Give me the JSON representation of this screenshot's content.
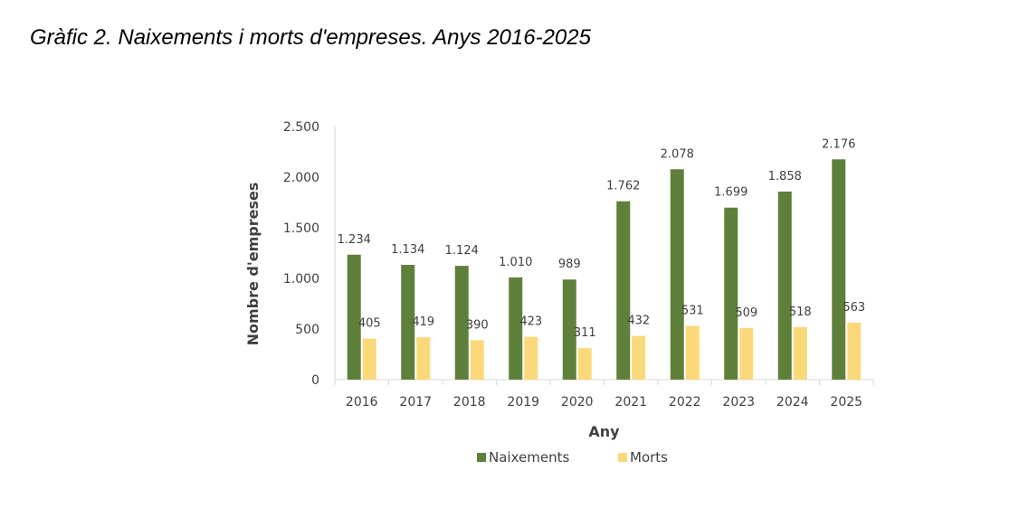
{
  "title": "Gràfic 2. Naixements i morts d'empreses. Anys 2016-2025",
  "chart_data": {
    "type": "bar",
    "categories": [
      "2016",
      "2017",
      "2018",
      "2019",
      "2020",
      "2021",
      "2022",
      "2023",
      "2024",
      "2025"
    ],
    "series": [
      {
        "name": "Naixements",
        "color": "#5f803a",
        "values": [
          1234,
          1134,
          1124,
          1010,
          989,
          1762,
          2078,
          1699,
          1858,
          2176
        ],
        "labels": [
          "1.234",
          "1.134",
          "1.124",
          "1.010",
          "989",
          "1.762",
          "2.078",
          "1.699",
          "1.858",
          "2.176"
        ]
      },
      {
        "name": "Morts",
        "color": "#fad97a",
        "values": [
          405,
          419,
          390,
          423,
          311,
          432,
          531,
          509,
          518,
          563
        ],
        "labels": [
          "405",
          "419",
          "390",
          "423",
          "311",
          "432",
          "531",
          "509",
          "518",
          "563"
        ]
      }
    ],
    "xlabel": "Any",
    "ylabel": "Nombre d'empreses",
    "ylim": [
      0,
      2500
    ],
    "yticks": [
      0,
      500,
      1000,
      1500,
      2000,
      2500
    ],
    "ytick_labels": [
      "0",
      "500",
      "1.000",
      "1.500",
      "2.000",
      "2.500"
    ],
    "grid": false,
    "legend_position": "bottom"
  }
}
